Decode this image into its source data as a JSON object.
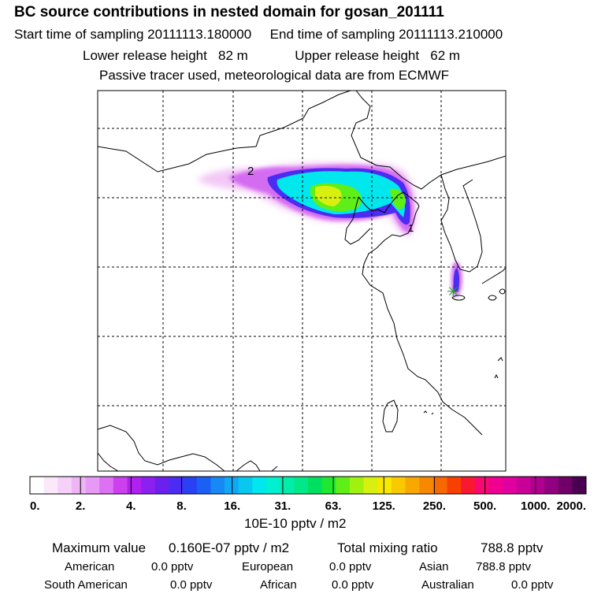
{
  "header": {
    "title": "BC  source contributions in nested domain for gosan_201111",
    "start_label": "Start time of sampling",
    "start_value": "20111113.180000",
    "end_label": "End time of sampling",
    "end_value": "20111113.210000",
    "lower_label": "Lower release height",
    "lower_value": "82 m",
    "upper_label": "Upper release height",
    "upper_value": "62 m",
    "note": "Passive tracer used, meteorological data are from ECMWF"
  },
  "map": {
    "markers": [
      "2",
      "1"
    ],
    "receptor_symbol": "✳"
  },
  "colorbar": {
    "colors": [
      "#ffffff",
      "#fbe8fb",
      "#f5d0f8",
      "#eeb5f5",
      "#e699f5",
      "#dd70f3",
      "#cc40f0",
      "#b020ee",
      "#8c20f0",
      "#6c20f0",
      "#4a2cf2",
      "#2a40f4",
      "#1a60f4",
      "#1888f4",
      "#10a8f4",
      "#08c8f0",
      "#00e8ee",
      "#00f0d0",
      "#00eeaa",
      "#00e888",
      "#00e060",
      "#20e830",
      "#60ee18",
      "#a0f010",
      "#d8f010",
      "#f8e800",
      "#f8c800",
      "#f8a800",
      "#f88800",
      "#f86800",
      "#f84000",
      "#f81830",
      "#f80870",
      "#f00090",
      "#e000a0",
      "#c80098",
      "#b00090",
      "#900080",
      "#700068",
      "#4a0050"
    ],
    "labels": [
      "0.",
      "2.",
      "4.",
      "8.",
      "16.",
      "31.",
      "63.",
      "125.",
      "250.",
      "500.",
      "1000.",
      "2000."
    ],
    "unit": "10E-10 pptv / m2"
  },
  "stats": {
    "max_label": "Maximum value",
    "max_value": "0.160E-07 pptv / m2",
    "total_label": "Total mixing ratio",
    "total_value": "788.8 pptv",
    "regions": [
      {
        "name": "American",
        "value": "0.0 pptv"
      },
      {
        "name": "European",
        "value": "0.0 pptv"
      },
      {
        "name": "Asian",
        "value": "788.8 pptv"
      },
      {
        "name": "South American",
        "value": "0.0 pptv"
      },
      {
        "name": "African",
        "value": "0.0 pptv"
      },
      {
        "name": "Australian",
        "value": "0.0 pptv"
      }
    ]
  }
}
